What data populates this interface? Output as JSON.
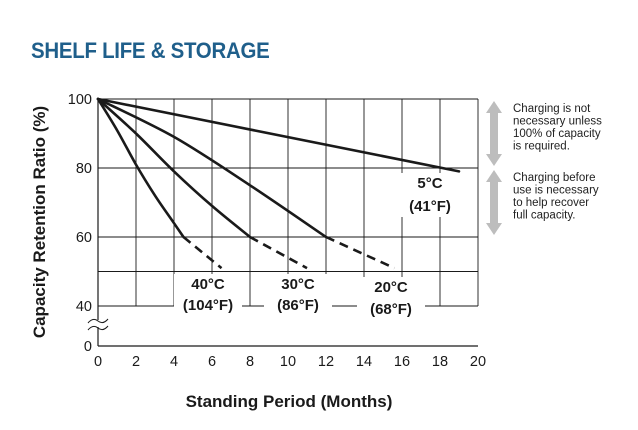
{
  "page_title": "SHELF LIFE & STORAGE",
  "chart_data": {
    "type": "line",
    "xlabel": "Standing Period (Months)",
    "ylabel": "Capacity Retention Ratio (%)",
    "xlim": [
      0,
      20
    ],
    "ylim": [
      0,
      100
    ],
    "y_axis_break": true,
    "x_ticks": [
      "0",
      "2",
      "4",
      "6",
      "8",
      "10",
      "12",
      "14",
      "16",
      "18",
      "20"
    ],
    "y_ticks": [
      "0",
      "40",
      "60",
      "80",
      "100"
    ],
    "grid": true,
    "series": [
      {
        "name": "5°C",
        "name2": "(41°F)",
        "solid": [
          [
            0,
            100
          ],
          [
            19,
            79
          ]
        ],
        "dashed": []
      },
      {
        "name": "20°C",
        "name2": "(68°F)",
        "solid": [
          [
            0,
            100
          ],
          [
            4,
            89
          ],
          [
            8,
            75
          ],
          [
            12,
            60
          ]
        ],
        "dashed": [
          [
            12,
            60
          ],
          [
            15.6,
            51
          ]
        ]
      },
      {
        "name": "30°C",
        "name2": "(86°F)",
        "solid": [
          [
            0,
            100
          ],
          [
            2,
            90
          ],
          [
            4,
            79
          ],
          [
            6,
            69
          ],
          [
            8,
            60
          ]
        ],
        "dashed": [
          [
            8,
            60
          ],
          [
            11,
            51
          ]
        ]
      },
      {
        "name": "40°C",
        "name2": "(104°F)",
        "solid": [
          [
            0,
            100
          ],
          [
            1,
            91
          ],
          [
            2,
            81
          ],
          [
            3,
            72
          ],
          [
            4,
            64
          ],
          [
            4.5,
            60
          ]
        ],
        "dashed": [
          [
            4.5,
            60
          ],
          [
            6.5,
            51
          ]
        ]
      }
    ],
    "annotations": [
      {
        "lines": [
          "Charging is not",
          "necessary unless",
          "100% of capacity",
          "is required."
        ],
        "range": [
          100,
          80
        ]
      },
      {
        "lines": [
          "Charging before",
          "use is necessary",
          "to help recover",
          "full capacity."
        ],
        "range": [
          80,
          60
        ]
      }
    ]
  }
}
